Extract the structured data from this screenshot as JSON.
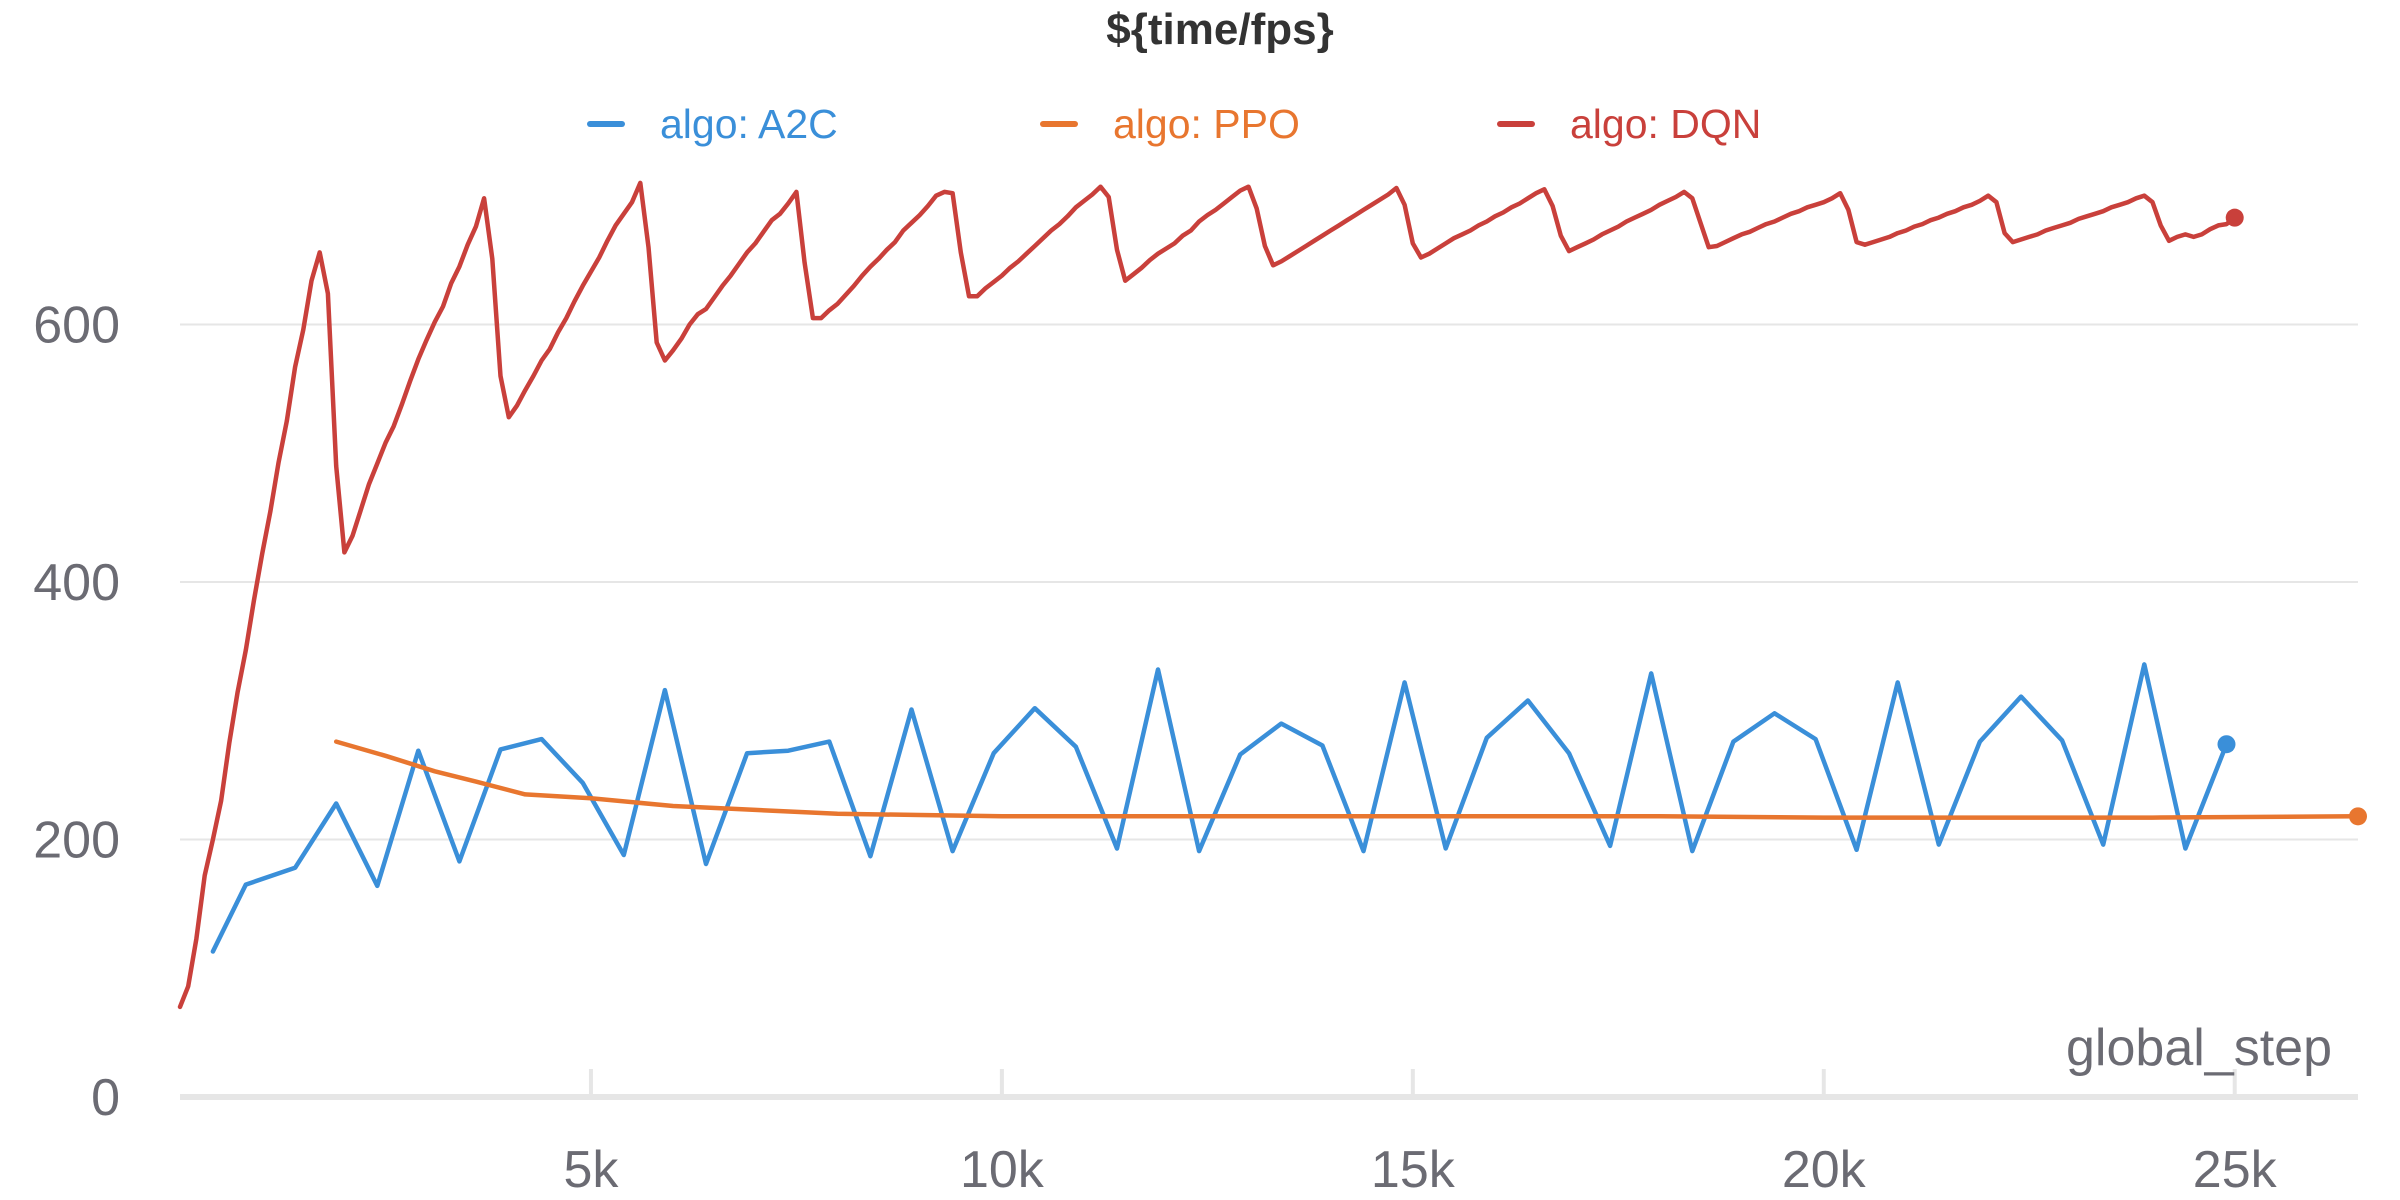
{
  "chart_data": {
    "type": "line",
    "title": "${time/fps}",
    "xlabel": "global_step",
    "ylabel": "",
    "xlim": [
      0,
      26500
    ],
    "ylim": [
      0,
      720
    ],
    "x_ticks": [
      5000,
      10000,
      15000,
      20000,
      25000
    ],
    "x_tick_labels": [
      "5k",
      "10k",
      "15k",
      "20k",
      "25k"
    ],
    "y_ticks": [
      0,
      200,
      400,
      600
    ],
    "y_tick_labels": [
      "0",
      "200",
      "400",
      "600"
    ],
    "grid": true,
    "legend": "top",
    "series": [
      {
        "name": "algo: A2C",
        "color": "#3a8fd9",
        "x": [
          400,
          800,
          1400,
          1900,
          2400,
          2900,
          3400,
          3900,
          4400,
          4900,
          5400,
          5900,
          6400,
          6900,
          7400,
          7900,
          8400,
          8900,
          9400,
          9900,
          10400,
          10900,
          11400,
          11900,
          12400,
          12900,
          13400,
          13900,
          14400,
          14900,
          15400,
          15900,
          16400,
          16900,
          17400,
          17900,
          18400,
          18900,
          19400,
          19900,
          20400,
          20900,
          21400,
          21900,
          22400,
          22900,
          23400,
          23900,
          24400,
          24900
        ],
        "y": [
          113,
          165,
          178,
          228,
          164,
          269,
          183,
          270,
          278,
          244,
          188,
          316,
          181,
          267,
          269,
          276,
          187,
          301,
          191,
          267,
          302,
          272,
          193,
          332,
          191,
          266,
          290,
          273,
          191,
          322,
          193,
          279,
          308,
          267,
          195,
          329,
          191,
          276,
          298,
          278,
          192,
          322,
          196,
          276,
          311,
          277,
          196,
          336,
          193,
          274
        ]
      },
      {
        "name": "algo: PPO",
        "color": "#e8762f",
        "x": [
          1900,
          2500,
          3100,
          3600,
          4200,
          5000,
          6000,
          7000,
          8000,
          9000,
          10000,
          12000,
          14000,
          16000,
          18000,
          20000,
          22000,
          24000,
          26500
        ],
        "y": [
          276,
          265,
          253,
          245,
          235,
          232,
          226,
          223,
          220,
          219,
          218,
          218,
          218,
          218,
          218,
          217,
          217,
          217,
          218
        ]
      },
      {
        "name": "algo: DQN",
        "color": "#c9403b",
        "x": [
          0,
          100,
          200,
          300,
          400,
          500,
          600,
          700,
          800,
          900,
          1000,
          1100,
          1200,
          1300,
          1400,
          1500,
          1600,
          1700,
          1800,
          1900,
          2000,
          2100,
          2200,
          2300,
          2400,
          2500,
          2600,
          2700,
          2800,
          2900,
          3000,
          3100,
          3200,
          3300,
          3400,
          3500,
          3600,
          3700,
          3800,
          3900,
          4000,
          4100,
          4200,
          4300,
          4400,
          4500,
          4600,
          4700,
          4800,
          4900,
          5000,
          5100,
          5200,
          5300,
          5400,
          5500,
          5600,
          5700,
          5800,
          5900,
          6000,
          6100,
          6200,
          6300,
          6400,
          6500,
          6600,
          6700,
          6800,
          6900,
          7000,
          7100,
          7200,
          7300,
          7400,
          7500,
          7600,
          7700,
          7800,
          7900,
          8000,
          8100,
          8200,
          8300,
          8400,
          8500,
          8600,
          8700,
          8800,
          8900,
          9000,
          9100,
          9200,
          9300,
          9400,
          9500,
          9600,
          9700,
          9800,
          9900,
          10000,
          10100,
          10200,
          10300,
          10400,
          10500,
          10600,
          10700,
          10800,
          10900,
          11000,
          11100,
          11200,
          11300,
          11400,
          11500,
          11600,
          11700,
          11800,
          11900,
          12000,
          12100,
          12200,
          12300,
          12400,
          12500,
          12600,
          12700,
          12800,
          12900,
          13000,
          13100,
          13200,
          13300,
          13400,
          13500,
          13600,
          13700,
          13800,
          13900,
          14000,
          14100,
          14200,
          14300,
          14400,
          14500,
          14600,
          14700,
          14800,
          14900,
          15000,
          15100,
          15200,
          15300,
          15400,
          15500,
          15600,
          15700,
          15800,
          15900,
          16000,
          16100,
          16200,
          16300,
          16400,
          16500,
          16600,
          16700,
          16800,
          16900,
          17000,
          17100,
          17200,
          17300,
          17400,
          17500,
          17600,
          17700,
          17800,
          17900,
          18000,
          18100,
          18200,
          18300,
          18400,
          18500,
          18600,
          18700,
          18800,
          18900,
          19000,
          19100,
          19200,
          19300,
          19400,
          19500,
          19600,
          19700,
          19800,
          19900,
          20000,
          20100,
          20200,
          20300,
          20400,
          20500,
          20600,
          20700,
          20800,
          20900,
          21000,
          21100,
          21200,
          21300,
          21400,
          21500,
          21600,
          21700,
          21800,
          21900,
          22000,
          22100,
          22200,
          22300,
          22400,
          22500,
          22600,
          22700,
          22800,
          22900,
          23000,
          23100,
          23200,
          23300,
          23400,
          23500,
          23600,
          23700,
          23800,
          23900,
          24000,
          24100,
          24200,
          24300,
          24400,
          24500,
          24600,
          24700,
          24800,
          24900,
          25000
        ],
        "y": [
          70,
          86,
          123,
          172,
          200,
          230,
          275,
          314,
          347,
          386,
          422,
          455,
          493,
          525,
          567,
          596,
          634,
          656,
          624,
          490,
          423,
          436,
          456,
          476,
          492,
          508,
          521,
          538,
          556,
          573,
          588,
          602,
          614,
          632,
          645,
          662,
          676,
          698,
          651,
          560,
          528,
          537,
          549,
          560,
          572,
          581,
          594,
          605,
          618,
          630,
          641,
          652,
          665,
          677,
          686,
          695,
          710,
          660,
          586,
          572,
          580,
          589,
          600,
          608,
          612,
          621,
          630,
          638,
          647,
          656,
          663,
          672,
          681,
          686,
          694,
          703,
          648,
          605,
          605,
          611,
          616,
          623,
          630,
          638,
          645,
          651,
          658,
          664,
          673,
          679,
          685,
          692,
          700,
          703,
          702,
          656,
          622,
          622,
          628,
          633,
          638,
          644,
          649,
          655,
          661,
          667,
          673,
          678,
          684,
          691,
          696,
          701,
          707,
          699,
          658,
          634,
          639,
          644,
          650,
          655,
          659,
          663,
          669,
          673,
          680,
          685,
          689,
          694,
          699,
          704,
          707,
          690,
          661,
          646,
          649,
          653,
          657,
          661,
          665,
          669,
          673,
          677,
          681,
          685,
          689,
          693,
          697,
          701,
          706,
          693,
          663,
          652,
          655,
          659,
          663,
          667,
          670,
          673,
          677,
          680,
          684,
          687,
          691,
          694,
          698,
          702,
          705,
          692,
          669,
          657,
          660,
          663,
          666,
          670,
          673,
          676,
          680,
          683,
          686,
          689,
          693,
          696,
          699,
          703,
          698,
          679,
          660,
          661,
          664,
          667,
          670,
          672,
          675,
          678,
          680,
          683,
          686,
          688,
          691,
          693,
          695,
          698,
          702,
          689,
          664,
          662,
          664,
          666,
          668,
          671,
          673,
          676,
          678,
          681,
          683,
          686,
          688,
          691,
          693,
          696,
          700,
          695,
          671,
          664,
          666,
          668,
          670,
          673,
          675,
          677,
          679,
          682,
          684,
          686,
          688,
          691,
          693,
          695,
          698,
          700,
          695,
          677,
          665,
          668,
          670,
          668,
          670,
          674,
          677,
          678,
          683
        ]
      }
    ]
  }
}
